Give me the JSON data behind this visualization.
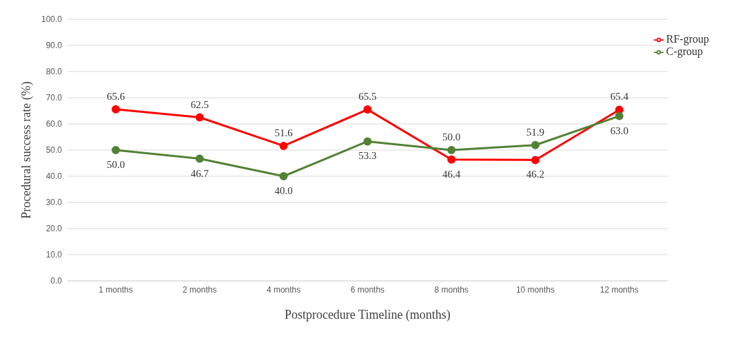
{
  "chart_data": {
    "type": "line",
    "xlabel": "Postprocedure Timeline (months)",
    "ylabel": "Procedural success rate (%)",
    "categories": [
      "1 months",
      "2 months",
      "4 months",
      "6 months",
      "8 months",
      "10 months",
      "12 months"
    ],
    "series": [
      {
        "name": "RF-group",
        "color": "#ff0000",
        "values": [
          65.6,
          62.5,
          51.6,
          65.5,
          46.4,
          46.2,
          65.4
        ],
        "value_labels": [
          "65.6",
          "62.5",
          "51.6",
          "65.5",
          "46.4",
          "46.2",
          "65.4"
        ]
      },
      {
        "name": "C-group",
        "color": "#538135",
        "values": [
          50.0,
          46.7,
          40.0,
          53.3,
          50.0,
          51.9,
          63.0
        ],
        "value_labels": [
          "50.0",
          "46.7",
          "40.0",
          "53.3",
          "50.0",
          "51.9",
          "63.0"
        ]
      }
    ],
    "ylim": [
      0,
      100
    ],
    "yticks": [
      {
        "value": 0,
        "label": "0.0"
      },
      {
        "value": 10,
        "label": "10.0"
      },
      {
        "value": 20,
        "label": "20.0"
      },
      {
        "value": 30,
        "label": "30.0"
      },
      {
        "value": 40,
        "label": "40.0"
      },
      {
        "value": 50,
        "label": "50.0"
      },
      {
        "value": 60,
        "label": "60.0"
      },
      {
        "value": 70,
        "label": "70.0"
      },
      {
        "value": 80,
        "label": "80.0"
      },
      {
        "value": 90,
        "label": "90.0"
      },
      {
        "value": 100,
        "label": "100.0"
      }
    ],
    "grid": "y",
    "legend": "top right",
    "marker": "circle",
    "line_style": "solid"
  }
}
